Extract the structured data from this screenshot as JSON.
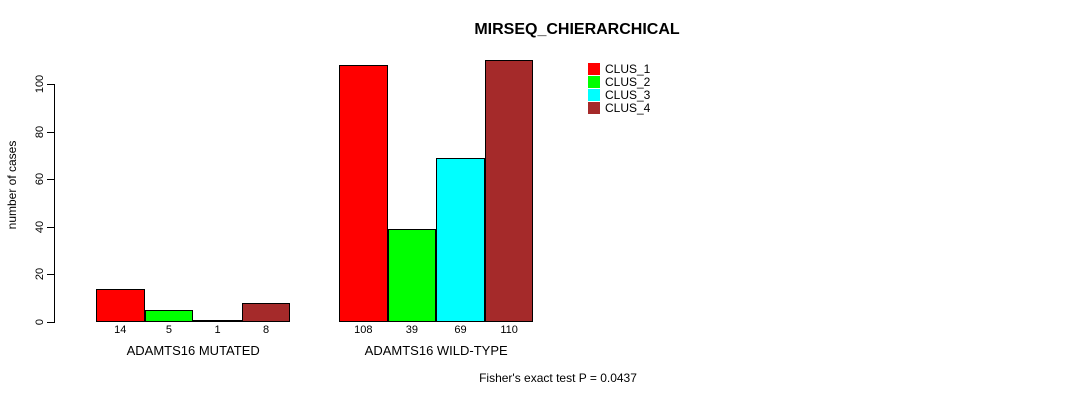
{
  "chart_data": {
    "type": "bar",
    "title": "MIRSEQ_CHIERARCHICAL",
    "ylabel": "number of cases",
    "xlabel": "",
    "annotation": "Fisher's exact test P = 0.0437",
    "categories": [
      "ADAMTS16 MUTATED",
      "ADAMTS16 WILD-TYPE"
    ],
    "series": [
      {
        "name": "CLUS_1",
        "color": "#FF0000",
        "values": [
          14,
          108
        ]
      },
      {
        "name": "CLUS_2",
        "color": "#00FF00",
        "values": [
          5,
          39
        ]
      },
      {
        "name": "CLUS_3",
        "color": "#00FFFF",
        "values": [
          1,
          69
        ]
      },
      {
        "name": "CLUS_4",
        "color": "#A52A2A",
        "values": [
          8,
          110
        ]
      }
    ],
    "yticks": [
      0,
      20,
      40,
      60,
      80,
      100
    ],
    "ylim": [
      0,
      114
    ],
    "grid": false,
    "legend_position": "top-right",
    "bar_border_color": "#000000",
    "background_color": "#FFFFFF"
  }
}
